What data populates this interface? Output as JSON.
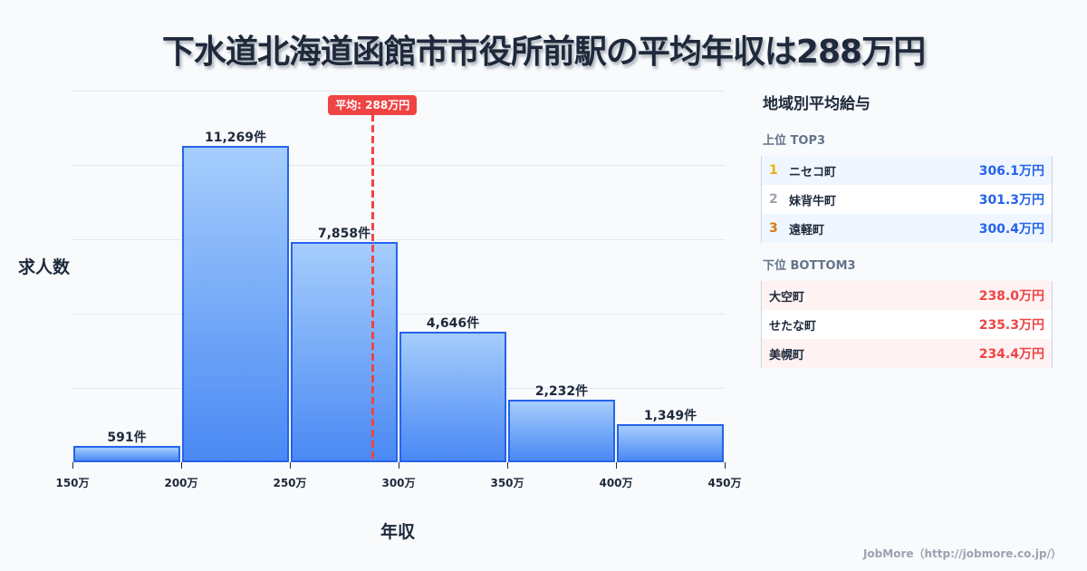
{
  "title": "下水道北海道函館市市役所前駅の平均年収は288万円",
  "chart_data": {
    "type": "bar",
    "title": "下水道北海道函館市市役所前駅の平均年収は288万円",
    "xlabel": "年収",
    "ylabel": "求人数",
    "bin_edges": [
      150,
      200,
      250,
      300,
      350,
      400,
      450
    ],
    "tick_labels": [
      "150万",
      "200万",
      "250万",
      "300万",
      "350万",
      "400万",
      "450万"
    ],
    "categories": [
      "150-200万",
      "200-250万",
      "250-300万",
      "300-350万",
      "350-400万",
      "400-450万"
    ],
    "values": [
      591,
      11269,
      7858,
      4646,
      2232,
      1349
    ],
    "value_labels": [
      "591件",
      "11,269件",
      "7,858件",
      "4,646件",
      "2,232件",
      "1,349件"
    ],
    "xlim": [
      150,
      450
    ],
    "ylim": [
      0,
      13240
    ],
    "grid": true,
    "annotations": [
      {
        "type": "vline",
        "x": 288,
        "label": "平均: 288万円",
        "color": "#ef4444"
      }
    ],
    "bar_color": "#60a5fa",
    "bar_edge_color": "#2563eb"
  },
  "panel": {
    "title": "地域別平均給与",
    "top": {
      "heading": "上位 TOP3",
      "items": [
        {
          "rank": "1",
          "name": "ニセコ町",
          "value": "306.1万円",
          "rank_color": "#eab308"
        },
        {
          "rank": "2",
          "name": "妹背牛町",
          "value": "301.3万円",
          "rank_color": "#9ca3af"
        },
        {
          "rank": "3",
          "name": "遠軽町",
          "value": "300.4万円",
          "rank_color": "#d97706"
        }
      ]
    },
    "bottom": {
      "heading": "下位 BOTTOM3",
      "items": [
        {
          "name": "大空町",
          "value": "238.0万円"
        },
        {
          "name": "せたな町",
          "value": "235.3万円"
        },
        {
          "name": "美幌町",
          "value": "234.4万円"
        }
      ]
    }
  },
  "footer": "JobMore（http://jobmore.co.jp/）"
}
